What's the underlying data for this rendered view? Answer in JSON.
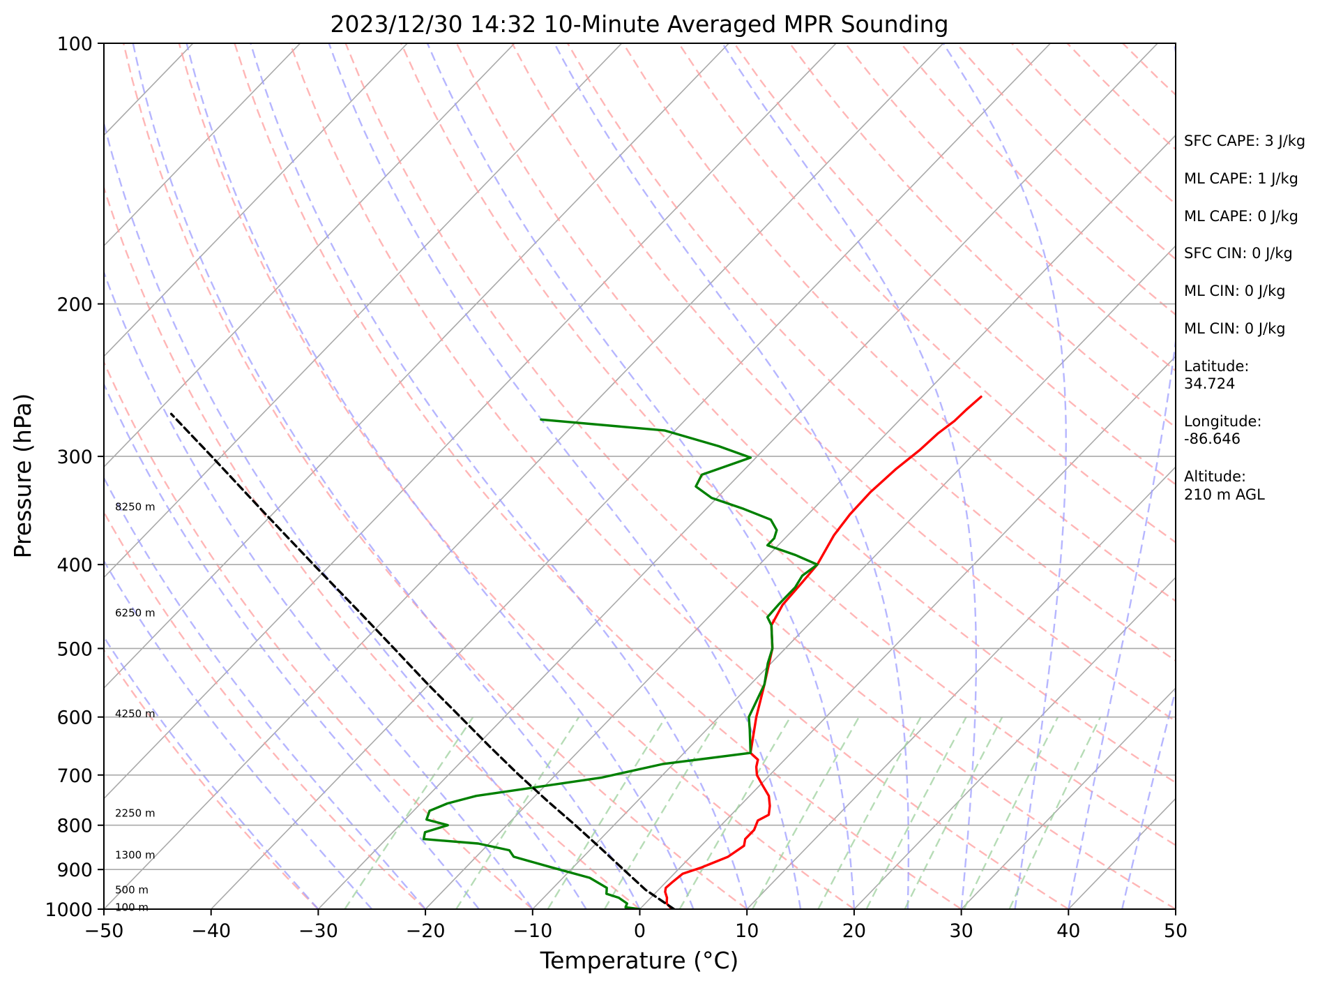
{
  "chart_data": {
    "type": "skew-t",
    "title": "2023/12/30 14:32 10-Minute Averaged MPR Sounding",
    "xlabel": "Temperature (°C)",
    "ylabel": "Pressure (hPa)",
    "xlim": [
      -50,
      50
    ],
    "ylim": [
      1000,
      100
    ],
    "y_scale": "log",
    "grid": true,
    "x_ticks": [
      -50,
      -40,
      -30,
      -20,
      -10,
      0,
      10,
      20,
      30,
      40,
      50
    ],
    "x_tick_labels": [
      "−50",
      "−40",
      "−30",
      "−20",
      "−10",
      "0",
      "10",
      "20",
      "30",
      "40",
      "50"
    ],
    "y_ticks": [
      1000,
      900,
      800,
      700,
      600,
      500,
      400,
      300,
      200,
      100
    ],
    "y_tick_labels": [
      "1000",
      "900",
      "800",
      "700",
      "600",
      "500",
      "400",
      "300",
      "200",
      "100"
    ],
    "height_labels": [
      {
        "p": 995,
        "label": "100 m"
      },
      {
        "p": 950,
        "label": "500 m"
      },
      {
        "p": 866,
        "label": "1300 m"
      },
      {
        "p": 775,
        "label": "2250 m"
      },
      {
        "p": 595,
        "label": "4250 m"
      },
      {
        "p": 455,
        "label": "6250 m"
      },
      {
        "p": 343,
        "label": "8250 m"
      }
    ],
    "series": [
      {
        "name": "Temperature",
        "color": "#ff0000",
        "points": [
          {
            "p": 1000,
            "t": 3.0
          },
          {
            "p": 985,
            "t": 2.0
          },
          {
            "p": 970,
            "t": 1.5
          },
          {
            "p": 955,
            "t": 0.8
          },
          {
            "p": 945,
            "t": 0.5
          },
          {
            "p": 930,
            "t": 0.6
          },
          {
            "p": 910,
            "t": 0.8
          },
          {
            "p": 895,
            "t": 2.0
          },
          {
            "p": 870,
            "t": 3.5
          },
          {
            "p": 845,
            "t": 4.0
          },
          {
            "p": 830,
            "t": 3.5
          },
          {
            "p": 810,
            "t": 3.5
          },
          {
            "p": 790,
            "t": 3.0
          },
          {
            "p": 778,
            "t": 3.5
          },
          {
            "p": 760,
            "t": 2.8
          },
          {
            "p": 740,
            "t": 1.8
          },
          {
            "p": 720,
            "t": 0.3
          },
          {
            "p": 700,
            "t": -1.2
          },
          {
            "p": 685,
            "t": -2.0
          },
          {
            "p": 672,
            "t": -2.5
          },
          {
            "p": 660,
            "t": -3.8
          },
          {
            "p": 600,
            "t": -6.5
          },
          {
            "p": 550,
            "t": -8.7
          },
          {
            "p": 500,
            "t": -11.2
          },
          {
            "p": 470,
            "t": -13.4
          },
          {
            "p": 445,
            "t": -14.2
          },
          {
            "p": 420,
            "t": -14.4
          },
          {
            "p": 400,
            "t": -14.6
          },
          {
            "p": 370,
            "t": -15.7
          },
          {
            "p": 350,
            "t": -16.1
          },
          {
            "p": 330,
            "t": -16.2
          },
          {
            "p": 310,
            "t": -15.9
          },
          {
            "p": 295,
            "t": -15.4
          },
          {
            "p": 282,
            "t": -15.2
          },
          {
            "p": 273,
            "t": -14.8
          },
          {
            "p": 265,
            "t": -14.7
          },
          {
            "p": 256,
            "t": -14.5
          }
        ]
      },
      {
        "name": "Dewpoint",
        "color": "#008000",
        "points": [
          {
            "p": 1000,
            "t": 0.0
          },
          {
            "p": 995,
            "t": -1.5
          },
          {
            "p": 985,
            "t": -1.7
          },
          {
            "p": 970,
            "t": -3.0
          },
          {
            "p": 960,
            "t": -4.5
          },
          {
            "p": 945,
            "t": -5.0
          },
          {
            "p": 920,
            "t": -7.5
          },
          {
            "p": 895,
            "t": -12.0
          },
          {
            "p": 870,
            "t": -16.5
          },
          {
            "p": 855,
            "t": -17.5
          },
          {
            "p": 840,
            "t": -21.0
          },
          {
            "p": 830,
            "t": -26.5
          },
          {
            "p": 815,
            "t": -27.0
          },
          {
            "p": 800,
            "t": -25.5
          },
          {
            "p": 788,
            "t": -28.0
          },
          {
            "p": 770,
            "t": -28.5
          },
          {
            "p": 755,
            "t": -27.5
          },
          {
            "p": 740,
            "t": -25.5
          },
          {
            "p": 705,
            "t": -15.5
          },
          {
            "p": 680,
            "t": -11.0
          },
          {
            "p": 660,
            "t": -3.8
          },
          {
            "p": 620,
            "t": -6.0
          },
          {
            "p": 600,
            "t": -7.2
          },
          {
            "p": 550,
            "t": -8.7
          },
          {
            "p": 520,
            "t": -10.3
          },
          {
            "p": 500,
            "t": -11.2
          },
          {
            "p": 470,
            "t": -13.4
          },
          {
            "p": 460,
            "t": -14.5
          },
          {
            "p": 445,
            "t": -14.6
          },
          {
            "p": 425,
            "t": -14.6
          },
          {
            "p": 412,
            "t": -15.0
          },
          {
            "p": 400,
            "t": -14.6
          },
          {
            "p": 390,
            "t": -17.5
          },
          {
            "p": 380,
            "t": -21.0
          },
          {
            "p": 373,
            "t": -21.0
          },
          {
            "p": 365,
            "t": -21.5
          },
          {
            "p": 355,
            "t": -23.0
          },
          {
            "p": 345,
            "t": -26.5
          },
          {
            "p": 335,
            "t": -30.5
          },
          {
            "p": 325,
            "t": -33.0
          },
          {
            "p": 315,
            "t": -33.5
          },
          {
            "p": 301,
            "t": -30.5
          },
          {
            "p": 292,
            "t": -34.5
          },
          {
            "p": 280,
            "t": -41.0
          },
          {
            "p": 272,
            "t": -53.5
          }
        ]
      },
      {
        "name": "Parcel",
        "color": "#000000",
        "dashed": true,
        "points": [
          {
            "p": 1000,
            "t": 3.2
          },
          {
            "p": 950,
            "t": -1.2
          },
          {
            "p": 900,
            "t": -5.1
          },
          {
            "p": 850,
            "t": -9.2
          },
          {
            "p": 800,
            "t": -13.6
          },
          {
            "p": 750,
            "t": -18.4
          },
          {
            "p": 700,
            "t": -23.4
          },
          {
            "p": 650,
            "t": -28.6
          },
          {
            "p": 600,
            "t": -34.1
          },
          {
            "p": 550,
            "t": -40.1
          },
          {
            "p": 500,
            "t": -46.5
          },
          {
            "p": 450,
            "t": -53.6
          },
          {
            "p": 400,
            "t": -61.6
          },
          {
            "p": 350,
            "t": -70.6
          },
          {
            "p": 300,
            "t": -80.9
          },
          {
            "p": 268,
            "t": -88.5
          }
        ]
      }
    ],
    "annotations": [
      "SFC CAPE: 3 J/kg",
      "ML CAPE: 1 J/kg",
      "ML CAPE: 0 J/kg",
      "SFC CIN: 0 J/kg",
      "ML CIN: 0 J/kg",
      "ML CIN: 0 J/kg",
      "Latitude:",
      "34.724",
      "Longitude:",
      "-86.646",
      "Altitude:",
      "210 m AGL"
    ],
    "background_lines": {
      "isotherm_color": "#a9a9a9",
      "dry_adiabat_color": "#ff9d9d",
      "moist_adiabat_color": "#9e9eff",
      "mixing_ratio_color": "#9ed09e"
    }
  }
}
